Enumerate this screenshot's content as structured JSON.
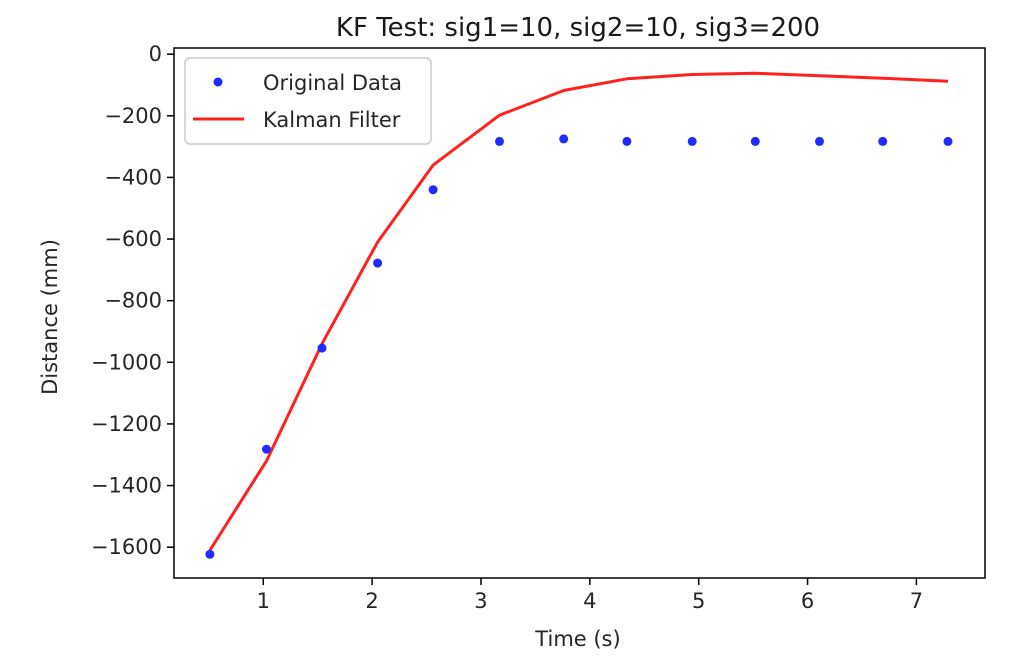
{
  "chart_data": {
    "type": "line",
    "title": "KF Test: sig1=10, sig2=10, sig3=200",
    "xlabel": "Time (s)",
    "ylabel": "Distance (mm)",
    "xlim": [
      0.18,
      7.63
    ],
    "ylim": [
      -1700,
      20
    ],
    "xticks": [
      1,
      2,
      3,
      4,
      5,
      6,
      7
    ],
    "xtick_labels": [
      "1",
      "2",
      "3",
      "4",
      "5",
      "6",
      "7"
    ],
    "yticks": [
      0,
      -200,
      -400,
      -600,
      -800,
      -1000,
      -1200,
      -1400,
      -1600
    ],
    "ytick_labels": [
      "0",
      "−200",
      "−400",
      "−600",
      "−800",
      "−1000",
      "−1200",
      "−1400",
      "−1600"
    ],
    "legend_position": "top-left",
    "series": [
      {
        "name": "Original Data",
        "kind": "scatter",
        "color": "#1f2bff",
        "x": [
          0.51,
          1.03,
          1.54,
          2.05,
          2.56,
          3.17,
          3.76,
          4.34,
          4.94,
          5.52,
          6.11,
          6.69,
          7.29
        ],
        "y": [
          -1623,
          -1282,
          -954,
          -678,
          -440,
          -283,
          -275,
          -283,
          -283,
          -283,
          -283,
          -283,
          -283
        ]
      },
      {
        "name": "Kalman Filter",
        "kind": "line",
        "color": "#ff2020",
        "x": [
          0.51,
          1.03,
          1.54,
          2.05,
          2.56,
          3.17,
          3.76,
          4.34,
          4.94,
          5.52,
          6.11,
          6.69,
          7.29
        ],
        "y": [
          -1610,
          -1320,
          -940,
          -610,
          -360,
          -198,
          -118,
          -80,
          -66,
          -62,
          -70,
          -78,
          -88
        ]
      }
    ]
  }
}
